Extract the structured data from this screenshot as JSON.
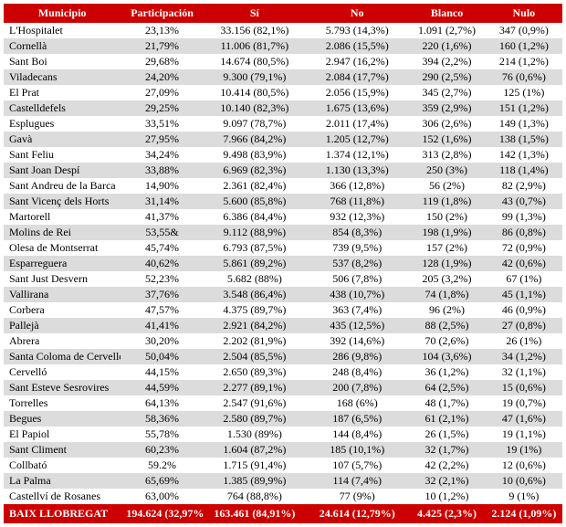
{
  "headers": [
    "Municipio",
    "Participación",
    "Sí",
    "No",
    "Blanco",
    "Nulo"
  ],
  "rows": [
    [
      "L'Hospitalet",
      "23,13%",
      "33.156 (82,1%)",
      "5.793 (14,3%)",
      "1.091 (2,7%)",
      "347 (0,9%)"
    ],
    [
      "Cornellà",
      "21,79%",
      "11.006 (81,7%)",
      "2.086 (15,5%)",
      "220 (1,6%)",
      "160 (1,2%)"
    ],
    [
      "Sant Boi",
      "29,68%",
      "14.674 (80,5%)",
      "2.947 (16,2%)",
      "394 (2,2%)",
      "214 (1,2%)"
    ],
    [
      "Viladecans",
      "24,20%",
      "9.300 (79,1%)",
      "2.084 (17,7%)",
      "290 (2,5%)",
      "76 (0,6%)"
    ],
    [
      "El Prat",
      "27,09%",
      "10.414 (80,5%)",
      "2.056 (15,9%)",
      "345 (2,7%)",
      "125 (1%)"
    ],
    [
      "Castelldefels",
      "29,25%",
      "10.140 (82,3%)",
      "1.675 (13,6%)",
      "359 (2,9%)",
      "151 (1,2%)"
    ],
    [
      "Esplugues",
      "33,51%",
      "9.097 (78,7%)",
      "2.011 (17,4%)",
      "306 (2,6%)",
      "149 (1,3%)"
    ],
    [
      "Gavà",
      "27,95%",
      "7.966 (84,2%)",
      "1.205 (12,7%)",
      "152 (1,6%)",
      "138 (1,5%)"
    ],
    [
      "Sant Feliu",
      "34,24%",
      "9.498 (83,9%)",
      "1.374 (12,1%)",
      "313 (2,8%)",
      "142 (1,3%)"
    ],
    [
      "Sant Joan Despí",
      "33,88%",
      "6.969 (82,3%)",
      "1.130 (13,3%)",
      "250 (3%)",
      "118 (1,4%)"
    ],
    [
      "Sant Andreu de la Barca",
      "14,90%",
      "2.361 (82,4%)",
      "366 (12,8%)",
      "56 (2%)",
      "82 (2,9%)"
    ],
    [
      "Sant Vicenç dels Horts",
      "31,14%",
      "5.600 (85,8%)",
      "768 (11,8%)",
      "119 (1,8%)",
      "43 (0,7%)"
    ],
    [
      "Martorell",
      "41,37%",
      "6.386 (84,4%)",
      "932 (12,3%)",
      "150 (2%)",
      "99 (1,3%)"
    ],
    [
      "Molins de Rei",
      "53,55&",
      "9.112 (88,9%)",
      "854 (8,3%)",
      "198 (1,9%)",
      "86 (0,8%)"
    ],
    [
      "Olesa de Montserrat",
      "45,74%",
      "6.793 (87,5%)",
      "739 (9,5%)",
      "157 (2%)",
      "72 (0,9%)"
    ],
    [
      "Esparreguera",
      "40,62%",
      "5.861 (89,2%)",
      "537 (8,2%)",
      "128 (1,9%)",
      "42 (0,6%)"
    ],
    [
      "Sant Just Desvern",
      "52,23%",
      "5.682 (88%)",
      "506 (7,8%)",
      "205 (3,2%)",
      "67 (1%)"
    ],
    [
      "Vallirana",
      "37,76%",
      "3.548 (86,4%)",
      "438 (10,7%)",
      "74 (1,8%)",
      "45 (1,1%)"
    ],
    [
      "Corbera",
      "47,57%",
      "4.375 (89,7%)",
      "363 (7,4%)",
      "96 (2%)",
      "46 (0,9%)"
    ],
    [
      "Pallejà",
      "41,41%",
      "2.921 (84,2%)",
      "435 (12,5%)",
      "88 (2,5%)",
      "27 (0,8%)"
    ],
    [
      "Abrera",
      "30,20%",
      "2.202 (81,9%)",
      "392 (14,6%)",
      "70 (2,6%)",
      "26 (1%)"
    ],
    [
      "Santa Coloma de Cervelló",
      "50,04%",
      "2.504 (85,5%)",
      "286 (9,8%)",
      "104 (3,6%)",
      "34 (1,2%)"
    ],
    [
      "Cervelló",
      "44,15%",
      "2.650 (89,3%)",
      "248 (8,4%)",
      "36 (1,2%)",
      "32 (1,1%)"
    ],
    [
      "Sant Esteve Sesrovires",
      "44,59%",
      "2.277 (89,1%)",
      "200 (7,8%)",
      "64 (2,5%)",
      "15 (0,6%)"
    ],
    [
      "Torrelles",
      "64,13%",
      "2.547 (91,6%)",
      "168 (6%)",
      "48 (1,7%)",
      "19 (0,7%)"
    ],
    [
      "Begues",
      "58,36%",
      "2.580 (89,7%)",
      "187 (6,5%)",
      "61 (2,1%)",
      "47 (1,6%)"
    ],
    [
      "El Papiol",
      "55,78%",
      "1.530 (89%)",
      "144 (8,4%)",
      "26 (1,5%)",
      "19 (1,1%)"
    ],
    [
      "Sant Climent",
      "60,23%",
      "1.604 (87,2%)",
      "185 (10,1%)",
      "32 (1,7%)",
      "19 (1%)"
    ],
    [
      "Collbató",
      "59.2%",
      "1.715 (91,4%)",
      "107 (5,7%)",
      "42 (2,2%)",
      "12 (0,6%)"
    ],
    [
      "La Palma",
      "65,69%",
      "1.385 (89,9%)",
      "114 (7,4%)",
      "32 (2,1%)",
      "10 (0,6%)"
    ],
    [
      "Castellví de Rosanes",
      "63,00%",
      "764 (88,8%)",
      "77 (9%)",
      "10 (1,2%)",
      "9 (1%)"
    ]
  ],
  "total": [
    "BAIX LLOBREGAT",
    "194.624 (32,97%)",
    "163.461 (84,91%)",
    "24.614 (12,79%)",
    "4.425 (2,3%)",
    "2.124 (1,09%)"
  ],
  "colors": {
    "header_bg": "#cc0000",
    "header_text": "#ffffff",
    "row_odd": "#ffffff",
    "row_even": "#dcdcdc"
  }
}
